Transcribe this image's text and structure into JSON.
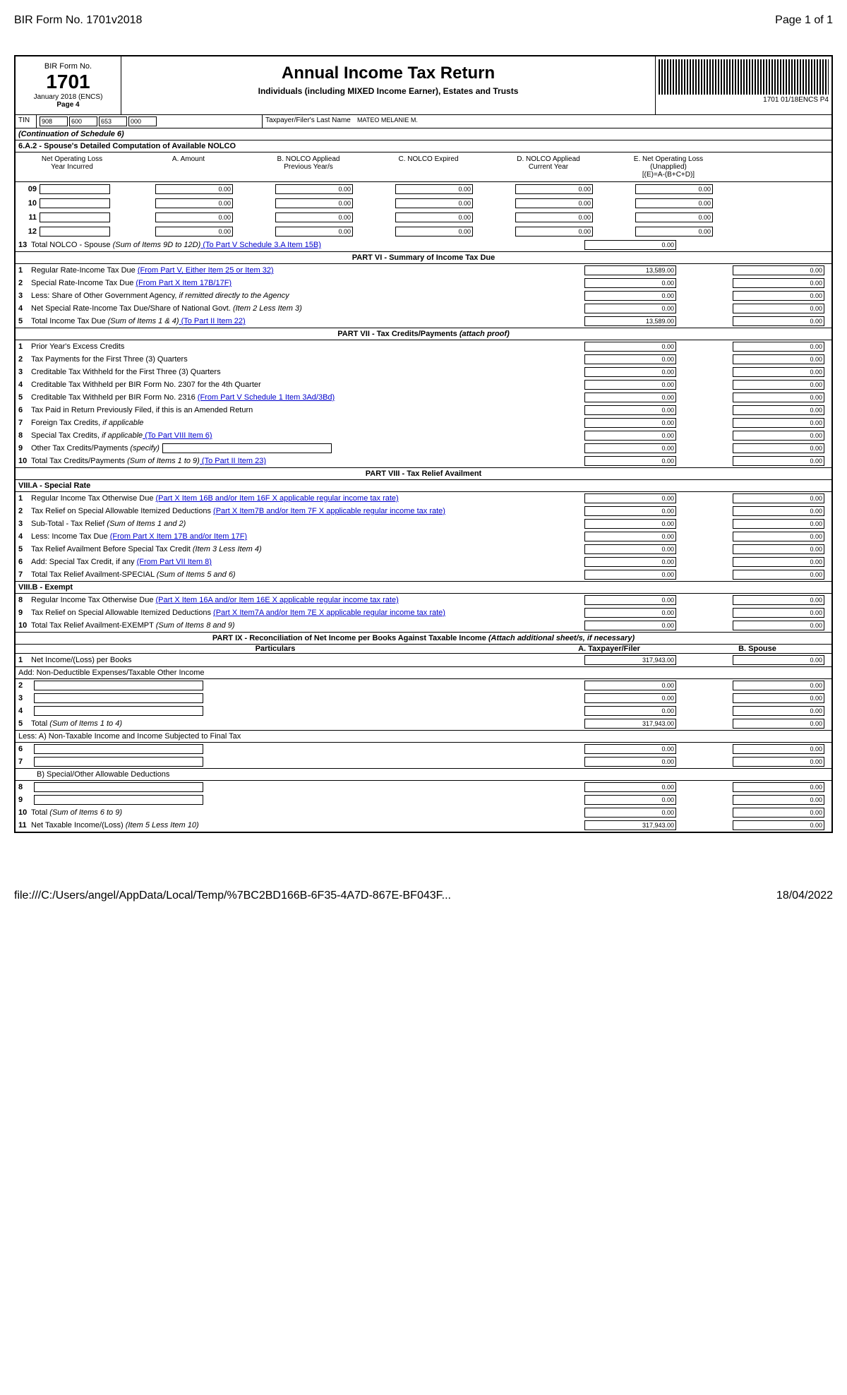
{
  "page_header": {
    "left": "BIR Form No. 1701v2018",
    "right": "Page 1 of 1"
  },
  "form_box": {
    "label": "BIR Form No.",
    "number": "1701",
    "edition": "January 2018 (ENCS)",
    "page": "Page 4"
  },
  "title": "Annual Income Tax Return",
  "subtitle": "Individuals (including MIXED Income Earner), Estates and Trusts",
  "barcode_text": "1701 01/18ENCS P4",
  "tin_label": "TIN",
  "tin": [
    "908",
    "600",
    "653",
    "000"
  ],
  "name_label": "Taxpayer/Filer's Last Name",
  "name_value": "MATEO MELANIE M.",
  "continuation": "(Continuation of Schedule 6)",
  "nolco_section": "6.A.2 - Spouse's Detailed Computation of Available NOLCO",
  "nolco_headers": {
    "col1a": "Net Operating Loss",
    "col1b": "Year Incurred",
    "col2": "A. Amount",
    "col3a": "B. NOLCO Appliead",
    "col3b": "Previous Year/s",
    "col4": "C. NOLCO Expired",
    "col5a": "D. NOLCO Appliead",
    "col5b": "Current Year",
    "col6a": "E. Net Operating Loss",
    "col6b": "(Unapplied)",
    "col6c": "[(E)=A-(B+C+D)]"
  },
  "nolco_rows": [
    {
      "num": "09",
      "vals": [
        "0.00",
        "0.00",
        "0.00",
        "0.00",
        "0.00"
      ]
    },
    {
      "num": "10",
      "vals": [
        "0.00",
        "0.00",
        "0.00",
        "0.00",
        "0.00"
      ]
    },
    {
      "num": "11",
      "vals": [
        "0.00",
        "0.00",
        "0.00",
        "0.00",
        "0.00"
      ]
    },
    {
      "num": "12",
      "vals": [
        "0.00",
        "0.00",
        "0.00",
        "0.00",
        "0.00"
      ]
    }
  ],
  "nolco_total": {
    "num": "13",
    "desc": "Total NOLCO - Spouse ",
    "italic": "(Sum of Items 9D to 12D)",
    "link": " (To Part V Schedule 3.A Item 15B)",
    "val": "0.00"
  },
  "part6_title": "PART VI - Summary of Income Tax Due",
  "part6": [
    {
      "num": "1",
      "desc": "Regular Rate-Income Tax Due ",
      "link": "(From Part V, Either Item 25 or Item 32)",
      "v1": "13,589.00",
      "v2": "0.00"
    },
    {
      "num": "2",
      "desc": "Special Rate-Income Tax Due ",
      "link": "(From Part X Item 17B/17F)",
      "v1": "0.00",
      "v2": "0.00"
    },
    {
      "num": "3",
      "desc": "Less: Share of Other Government Agency, ",
      "italic": "if remitted directly to the Agency",
      "v1": "0.00",
      "v2": "0.00"
    },
    {
      "num": "4",
      "desc": "Net Special Rate-Income Tax Due/Share of National Govt. ",
      "italic": "(Item 2 Less Item 3)",
      "v1": "0.00",
      "v2": "0.00"
    },
    {
      "num": "5",
      "desc": "Total Income Tax Due ",
      "italic": "(Sum of Items 1 & 4)",
      "link": " (To Part II Item 22)",
      "v1": "13,589.00",
      "v2": "0.00"
    }
  ],
  "part7_title": "PART VII - Tax Credits/Payments ",
  "part7_italic": "(attach proof)",
  "part7": [
    {
      "num": "1",
      "desc": "Prior Year's Excess Credits",
      "v1": "0.00",
      "v2": "0.00"
    },
    {
      "num": "2",
      "desc": "Tax Payments for the First Three (3) Quarters",
      "v1": "0.00",
      "v2": "0.00"
    },
    {
      "num": "3",
      "desc": "Creditable Tax Withheld for the First Three (3) Quarters",
      "v1": "0.00",
      "v2": "0.00"
    },
    {
      "num": "4",
      "desc": "Creditable Tax Withheld per BIR Form No. 2307 for the 4th Quarter",
      "v1": "0.00",
      "v2": "0.00"
    },
    {
      "num": "5",
      "desc": "Creditable Tax Withheld per BIR Form No. 2316 ",
      "link": "(From Part V Schedule 1 Item 3Ad/3Bd)",
      "v1": "0.00",
      "v2": "0.00"
    },
    {
      "num": "6",
      "desc": "Tax Paid in Return Previously Filed, if this is an Amended Return",
      "v1": "0.00",
      "v2": "0.00"
    },
    {
      "num": "7",
      "desc": "Foreign Tax Credits, ",
      "italic": "if applicable",
      "v1": "0.00",
      "v2": "0.00"
    },
    {
      "num": "8",
      "desc": "Special Tax Credits, ",
      "italic": "if applicable",
      "link": " (To Part VIII Item 6)",
      "v1": "0.00",
      "v2": "0.00"
    },
    {
      "num": "9",
      "desc": "Other Tax Credits/Payments ",
      "italic": "(specify)",
      "has_input": true,
      "v1": "0.00",
      "v2": "0.00"
    },
    {
      "num": "10",
      "desc": "Total Tax Credits/Payments ",
      "italic": "(Sum of Items 1 to 9)",
      "link": " (To Part II Item 23)",
      "v1": "0.00",
      "v2": "0.00"
    }
  ],
  "part8_title": "PART VIII - Tax Relief Availment",
  "part8a_label": "VIII.A - Special Rate",
  "part8a": [
    {
      "num": "1",
      "desc": "Regular Income Tax Otherwise Due ",
      "link": "(Part X Item 16B and/or Item 16F X applicable regular income tax rate)",
      "v1": "0.00",
      "v2": "0.00"
    },
    {
      "num": "2",
      "desc": "Tax Relief on Special Allowable Itemized Deductions ",
      "link": "(Part X Item7B and/or Item 7F X applicable regular income tax rate)",
      "v1": "0.00",
      "v2": "0.00"
    },
    {
      "num": "3",
      "desc": "Sub-Total - Tax Relief ",
      "italic": "(Sum of Items 1 and 2)",
      "v1": "0.00",
      "v2": "0.00"
    },
    {
      "num": "4",
      "desc": "Less: Income Tax Due ",
      "link": "(From Part X Item 17B and/or Item 17F)",
      "v1": "0.00",
      "v2": "0.00"
    },
    {
      "num": "5",
      "desc": "Tax Relief Availment Before Special Tax Credit ",
      "italic": "(Item 3 Less Item 4)",
      "v1": "0.00",
      "v2": "0.00"
    },
    {
      "num": "6",
      "desc": "Add: Special Tax Credit, if any ",
      "link": "(From Part VII Item 8)",
      "v1": "0.00",
      "v2": "0.00"
    },
    {
      "num": "7",
      "desc": "Total Tax Relief Availment-SPECIAL ",
      "italic": "(Sum of Items 5 and 6)",
      "v1": "0.00",
      "v2": "0.00"
    }
  ],
  "part8b_label": "VIII.B - Exempt",
  "part8b": [
    {
      "num": "8",
      "desc": "Regular Income Tax Otherwise Due ",
      "link": "(Part X Item 16A and/or Item 16E X applicable regular income tax rate)",
      "v1": "0.00",
      "v2": "0.00"
    },
    {
      "num": "9",
      "desc": "Tax Relief on Special Allowable Itemized Deductions ",
      "link": "(Part X Item7A and/or Item 7E X applicable regular income tax rate)",
      "v1": "0.00",
      "v2": "0.00"
    },
    {
      "num": "10",
      "desc": "Total Tax Relief Availment-EXEMPT ",
      "italic": "(Sum of Items 8 and 9)",
      "v1": "0.00",
      "v2": "0.00"
    }
  ],
  "part9_title": "PART IX - Reconciliation of Net Income per Books Against Taxable Income ",
  "part9_italic": "(Attach additional sheet/s, if necessary)",
  "part9_headers": {
    "particulars": "Particulars",
    "filer": "A. Taxpayer/Filer",
    "spouse": "B. Spouse"
  },
  "part9": [
    {
      "num": "1",
      "desc": "Net Income/(Loss) per Books",
      "v1": "317,943.00",
      "v2": "0.00"
    }
  ],
  "part9_add_label": "Add: Non-Deductible Expenses/Taxable Other Income",
  "part9_add": [
    {
      "num": "2",
      "has_input": true,
      "v1": "0.00",
      "v2": "0.00"
    },
    {
      "num": "3",
      "has_input": true,
      "v1": "0.00",
      "v2": "0.00"
    },
    {
      "num": "4",
      "has_input": true,
      "v1": "0.00",
      "v2": "0.00"
    }
  ],
  "part9_5": {
    "num": "5",
    "desc": "Total ",
    "italic": "(Sum of Items 1 to 4)",
    "v1": "317,943.00",
    "v2": "0.00"
  },
  "part9_less_label": "Less: A) Non-Taxable Income and Income Subjected to Final Tax",
  "part9_lessA": [
    {
      "num": "6",
      "has_input": true,
      "v1": "0.00",
      "v2": "0.00"
    },
    {
      "num": "7",
      "has_input": true,
      "v1": "0.00",
      "v2": "0.00"
    }
  ],
  "part9_lessB_label": "B) Special/Other Allowable Deductions",
  "part9_lessB": [
    {
      "num": "8",
      "has_input": true,
      "v1": "0.00",
      "v2": "0.00"
    },
    {
      "num": "9",
      "has_input": true,
      "v1": "0.00",
      "v2": "0.00"
    }
  ],
  "part9_10": {
    "num": "10",
    "desc": "Total ",
    "italic": "(Sum of Items 6 to 9)",
    "v1": "0.00",
    "v2": "0.00"
  },
  "part9_11": {
    "num": "11",
    "desc": "Net Taxable Income/(Loss) ",
    "italic": "(Item 5 Less Item 10)",
    "v1": "317,943.00",
    "v2": "0.00"
  },
  "footer": {
    "left": "file:///C:/Users/angel/AppData/Local/Temp/%7BC2BD166B-6F35-4A7D-867E-BF043F...",
    "right": "18/04/2022"
  }
}
